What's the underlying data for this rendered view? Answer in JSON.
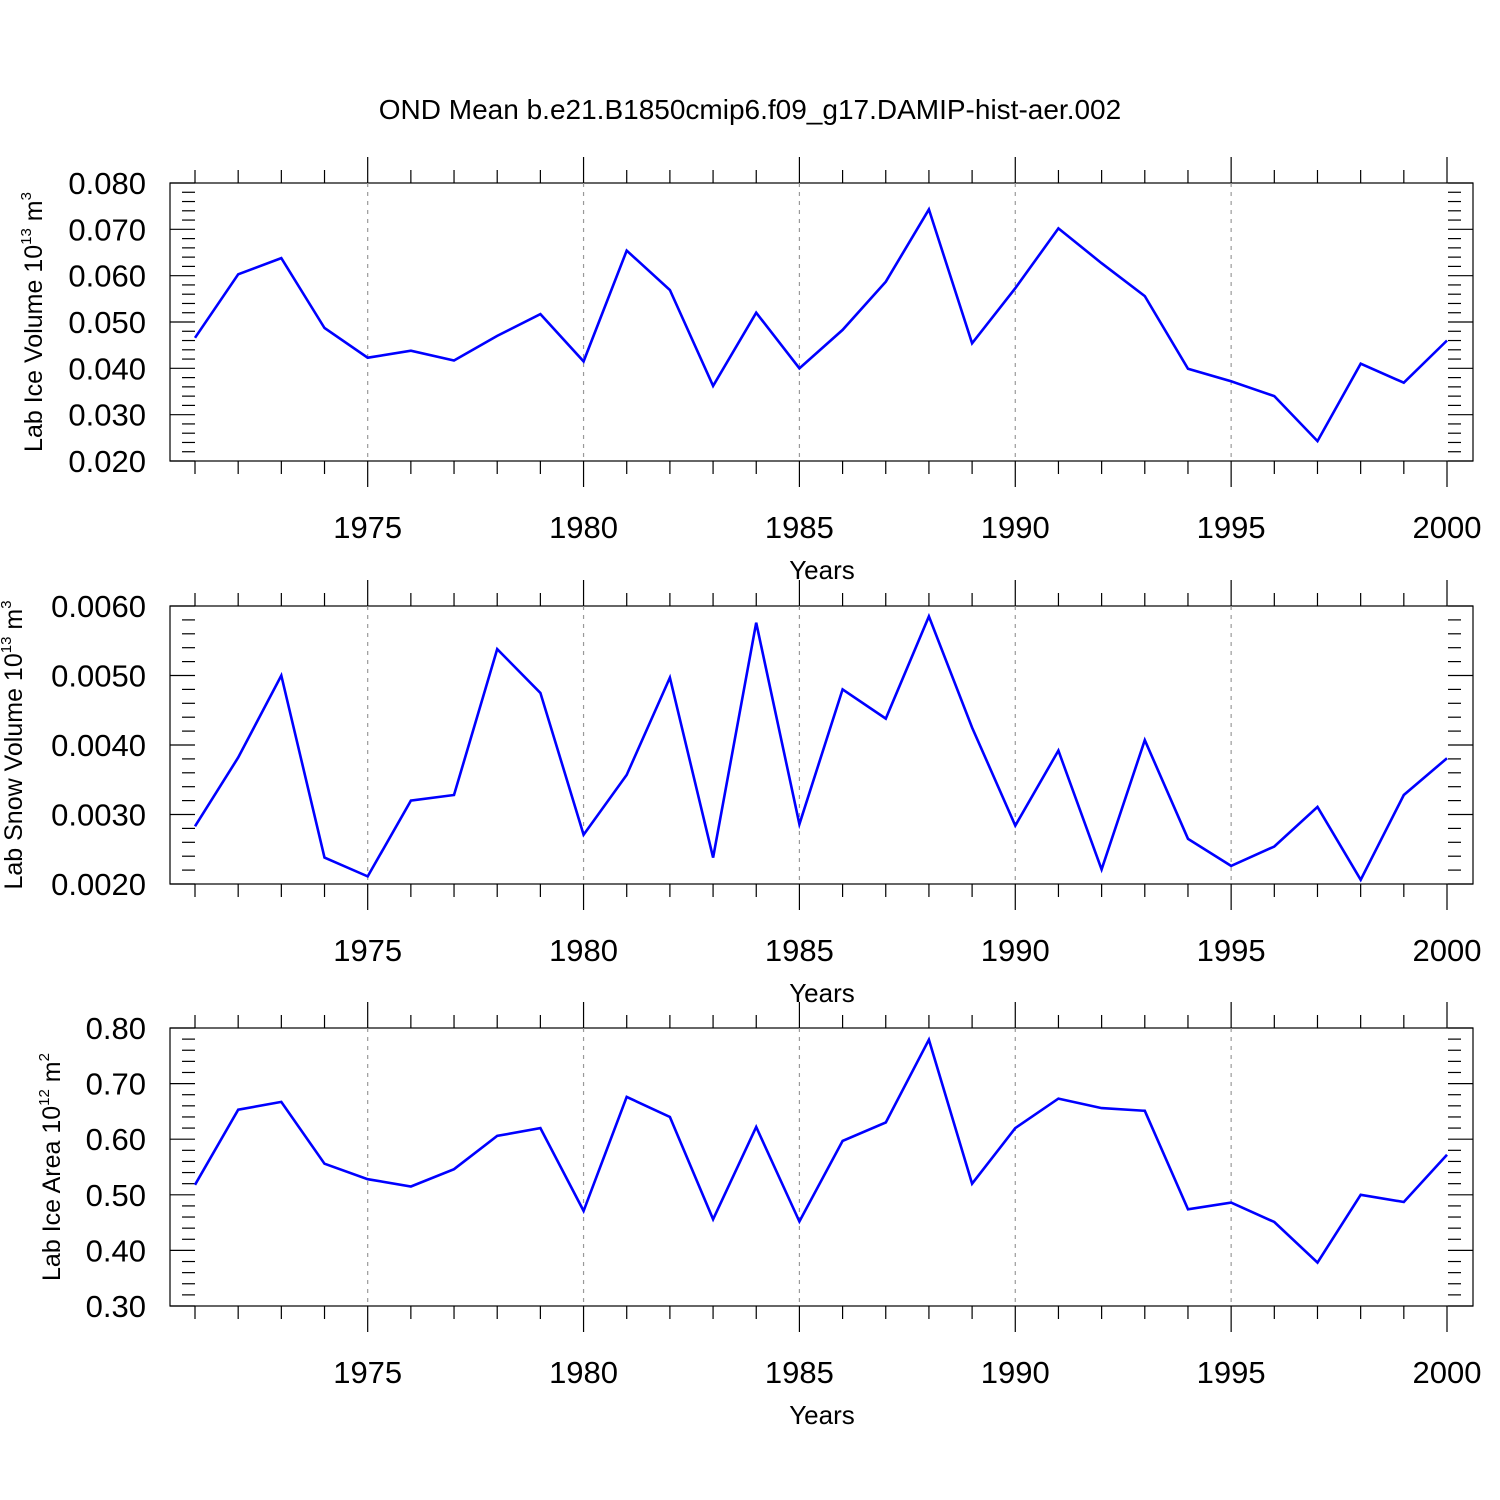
{
  "title": "OND Mean b.e21.B1850cmip6.f09_g17.DAMIP-hist-aer.002",
  "line_color": "#0000ff",
  "chart_data": [
    {
      "type": "line",
      "ylabel_main": "Lab Ice Volume 10",
      "ylabel_exp": "13",
      "ylabel_unit": " m",
      "ylabel_unit_exp": "3",
      "xlabel": "Years",
      "xlim": [
        1971,
        2000
      ],
      "ylim": [
        0.02,
        0.08
      ],
      "yticks": [
        "0.020",
        "0.030",
        "0.040",
        "0.050",
        "0.060",
        "0.070",
        "0.080"
      ],
      "xticks": [
        "1975",
        "1980",
        "1985",
        "1990",
        "1995",
        "2000"
      ],
      "x": [
        1971,
        1972,
        1973,
        1974,
        1975,
        1976,
        1977,
        1978,
        1979,
        1980,
        1981,
        1982,
        1983,
        1984,
        1985,
        1986,
        1987,
        1988,
        1989,
        1990,
        1991,
        1992,
        1993,
        1994,
        1995,
        1996,
        1997,
        1998,
        1999,
        2000
      ],
      "values": [
        0.0466,
        0.0603,
        0.0638,
        0.0487,
        0.0423,
        0.0438,
        0.0417,
        0.047,
        0.0517,
        0.0415,
        0.0654,
        0.0569,
        0.0362,
        0.052,
        0.04,
        0.0483,
        0.0587,
        0.0743,
        0.0454,
        0.0573,
        0.0702,
        0.0627,
        0.0556,
        0.0399,
        0.0372,
        0.034,
        0.0243,
        0.041,
        0.0369,
        0.046
      ]
    },
    {
      "type": "line",
      "ylabel_main": "Lab Snow Volume 10",
      "ylabel_exp": "13",
      "ylabel_unit": " m",
      "ylabel_unit_exp": "3",
      "xlabel": "Years",
      "xlim": [
        1971,
        2000
      ],
      "ylim": [
        0.002,
        0.006
      ],
      "yticks": [
        "0.0020",
        "0.0030",
        "0.0040",
        "0.0050",
        "0.0060"
      ],
      "xticks": [
        "1975",
        "1980",
        "1985",
        "1990",
        "1995",
        "2000"
      ],
      "x": [
        1971,
        1972,
        1973,
        1974,
        1975,
        1976,
        1977,
        1978,
        1979,
        1980,
        1981,
        1982,
        1983,
        1984,
        1985,
        1986,
        1987,
        1988,
        1989,
        1990,
        1991,
        1992,
        1993,
        1994,
        1995,
        1996,
        1997,
        1998,
        1999,
        2000
      ],
      "values": [
        0.00283,
        0.00382,
        0.005,
        0.00238,
        0.00211,
        0.0032,
        0.00328,
        0.00538,
        0.00475,
        0.00271,
        0.00357,
        0.00497,
        0.00238,
        0.00576,
        0.00286,
        0.0048,
        0.00438,
        0.00585,
        0.00425,
        0.00284,
        0.00392,
        0.00221,
        0.00407,
        0.00265,
        0.00226,
        0.00254,
        0.00311,
        0.00206,
        0.00328,
        0.00381
      ]
    },
    {
      "type": "line",
      "ylabel_main": "Lab Ice Area 10",
      "ylabel_exp": "12",
      "ylabel_unit": " m",
      "ylabel_unit_exp": "2",
      "xlabel": "Years",
      "xlim": [
        1971,
        2000
      ],
      "ylim": [
        0.3,
        0.8
      ],
      "yticks": [
        "0.30",
        "0.40",
        "0.50",
        "0.60",
        "0.70",
        "0.80"
      ],
      "xticks": [
        "1975",
        "1980",
        "1985",
        "1990",
        "1995",
        "2000"
      ],
      "x": [
        1971,
        1972,
        1973,
        1974,
        1975,
        1976,
        1977,
        1978,
        1979,
        1980,
        1981,
        1982,
        1983,
        1984,
        1985,
        1986,
        1987,
        1988,
        1989,
        1990,
        1991,
        1992,
        1993,
        1994,
        1995,
        1996,
        1997,
        1998,
        1999,
        2000
      ],
      "values": [
        0.518,
        0.653,
        0.667,
        0.556,
        0.528,
        0.515,
        0.546,
        0.606,
        0.62,
        0.471,
        0.676,
        0.64,
        0.456,
        0.622,
        0.452,
        0.597,
        0.63,
        0.779,
        0.52,
        0.62,
        0.673,
        0.656,
        0.651,
        0.474,
        0.486,
        0.451,
        0.378,
        0.5,
        0.487,
        0.572
      ]
    }
  ]
}
